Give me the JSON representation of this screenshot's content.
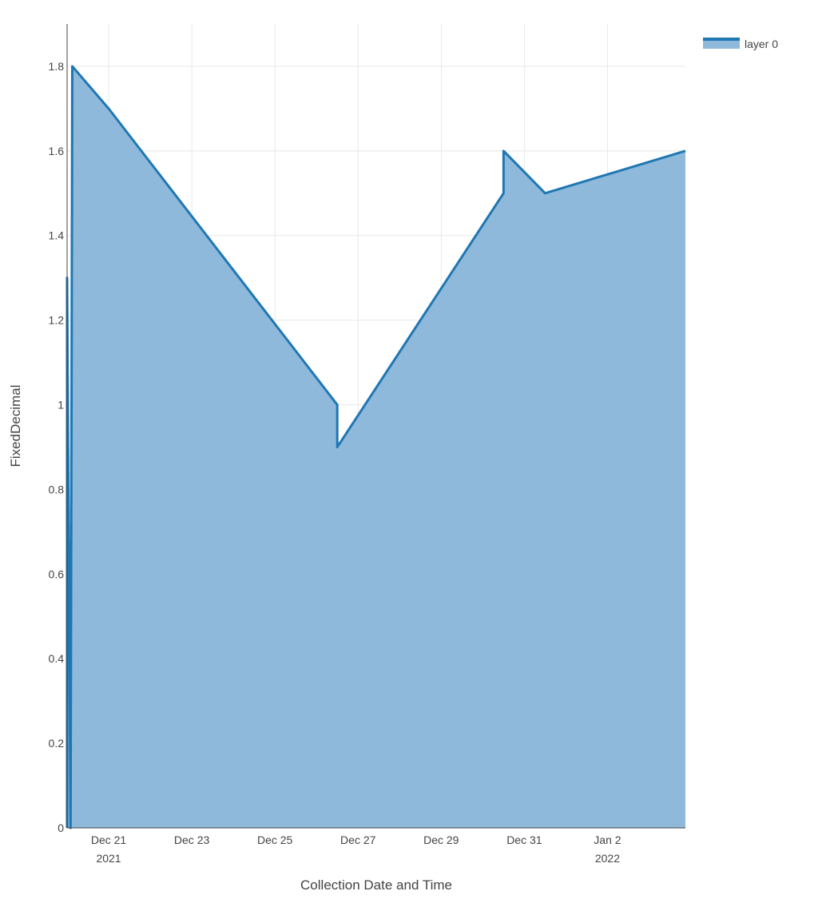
{
  "chart_data": {
    "type": "area",
    "xlabel": "Collection Date and Time",
    "ylabel": "FixedDecimal",
    "xlim": [
      "2021-12-20T00:00",
      "2022-01-03T21:00"
    ],
    "ylim": [
      0,
      1.9
    ],
    "grid": true,
    "legend_position": "top-right",
    "colors": {
      "line": "#1f77b4",
      "fill": "#8fb9da"
    },
    "y_ticks": [
      "0",
      "0.2",
      "0.4",
      "0.6",
      "0.8",
      "1",
      "1.2",
      "1.4",
      "1.6",
      "1.8"
    ],
    "x_ticks": [
      {
        "date": "2021-12-21",
        "label": "Dec 21",
        "sub": "2021"
      },
      {
        "date": "2021-12-23",
        "label": "Dec 23",
        "sub": ""
      },
      {
        "date": "2021-12-25",
        "label": "Dec 25",
        "sub": ""
      },
      {
        "date": "2021-12-27",
        "label": "Dec 27",
        "sub": ""
      },
      {
        "date": "2021-12-29",
        "label": "Dec 29",
        "sub": ""
      },
      {
        "date": "2021-12-31",
        "label": "Dec 31",
        "sub": ""
      },
      {
        "date": "2022-01-02",
        "label": "Jan 2",
        "sub": "2022"
      }
    ],
    "series": [
      {
        "name": "layer 0",
        "points": [
          {
            "x": "2021-12-20T00:00",
            "y": 0
          },
          {
            "x": "2021-12-20T00:00",
            "y": 1.3
          },
          {
            "x": "2021-12-20T02:00",
            "y": 0
          },
          {
            "x": "2021-12-20T03:00",
            "y": 1.8
          },
          {
            "x": "2021-12-21T00:00",
            "y": 1.7
          },
          {
            "x": "2021-12-26T12:00",
            "y": 1.0
          },
          {
            "x": "2021-12-26T12:00",
            "y": 0.9
          },
          {
            "x": "2021-12-30T12:00",
            "y": 1.5
          },
          {
            "x": "2021-12-30T12:00",
            "y": 1.6
          },
          {
            "x": "2021-12-31T12:00",
            "y": 1.5
          },
          {
            "x": "2022-01-03T21:00",
            "y": 1.6
          }
        ]
      }
    ]
  }
}
